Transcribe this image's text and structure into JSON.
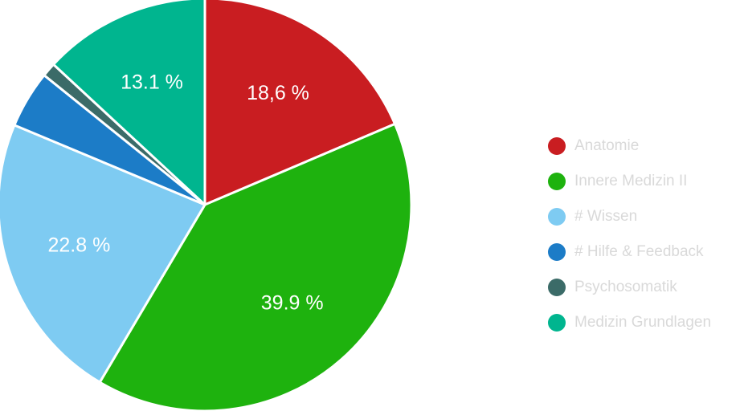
{
  "chart_data": {
    "type": "pie",
    "categories": [
      "Anatomie",
      "Innere Medizin II",
      "# Wissen",
      "# Hilfe & Feedback",
      "Psychosomatik",
      "Medizin Grundlagen"
    ],
    "values": [
      18.6,
      39.9,
      22.8,
      4.5,
      1.1,
      13.1
    ],
    "data_labels": [
      "18,6 %",
      "39.9 %",
      "22.8 %",
      "",
      "",
      "13.1 %"
    ],
    "colors": [
      "#c91d21",
      "#1eb20e",
      "#7ecbf2",
      "#1c7cc7",
      "#3b6b68",
      "#00b58f"
    ],
    "start_angle_deg": 0,
    "direction": "clockwise",
    "legend_position": "right"
  }
}
